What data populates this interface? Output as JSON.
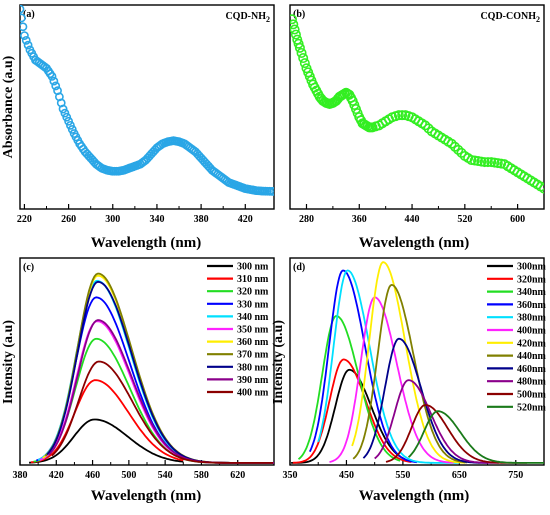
{
  "chart_data": [
    {
      "type": "scatter",
      "panel_label": "(a)",
      "tag": "CQD-NH",
      "tag_sub": "2",
      "xlabel": "Wavelength (nm)",
      "ylabel": "Absorbance (a.u)",
      "xlim": [
        216,
        446
      ],
      "ylim": [
        0,
        1
      ],
      "xticks": [
        220,
        260,
        300,
        340,
        380,
        420
      ],
      "color": "#2aa6e6",
      "x": [
        216,
        220,
        225,
        230,
        235,
        240,
        245,
        250,
        255,
        260,
        265,
        270,
        275,
        280,
        285,
        290,
        295,
        300,
        305,
        310,
        315,
        320,
        325,
        330,
        335,
        340,
        345,
        350,
        355,
        360,
        365,
        370,
        375,
        380,
        385,
        390,
        395,
        400,
        405,
        410,
        415,
        420,
        425,
        430,
        435,
        440,
        446
      ],
      "y": [
        0.98,
        0.85,
        0.78,
        0.73,
        0.71,
        0.69,
        0.65,
        0.58,
        0.49,
        0.43,
        0.37,
        0.32,
        0.28,
        0.25,
        0.22,
        0.2,
        0.19,
        0.185,
        0.185,
        0.19,
        0.2,
        0.21,
        0.22,
        0.24,
        0.27,
        0.3,
        0.32,
        0.33,
        0.335,
        0.33,
        0.32,
        0.3,
        0.28,
        0.25,
        0.22,
        0.19,
        0.17,
        0.15,
        0.13,
        0.12,
        0.11,
        0.1,
        0.095,
        0.09,
        0.088,
        0.087,
        0.086
      ]
    },
    {
      "type": "scatter",
      "panel_label": "(b)",
      "tag": "CQD-CONH",
      "tag_sub": "2",
      "xlabel": "Wavelength (nm)",
      "ylabel": "",
      "xlim": [
        255,
        640
      ],
      "ylim": [
        0,
        1
      ],
      "xticks": [
        280,
        360,
        440,
        520,
        600
      ],
      "color": "#33ee22",
      "x": [
        258,
        262,
        266,
        270,
        275,
        280,
        285,
        290,
        295,
        300,
        305,
        310,
        315,
        320,
        325,
        330,
        335,
        340,
        345,
        350,
        355,
        360,
        365,
        370,
        375,
        380,
        390,
        400,
        410,
        420,
        430,
        440,
        450,
        460,
        470,
        480,
        490,
        500,
        510,
        520,
        530,
        540,
        550,
        560,
        570,
        580,
        590,
        600,
        610,
        620,
        630,
        640
      ],
      "y": [
        0.93,
        0.88,
        0.83,
        0.79,
        0.74,
        0.69,
        0.65,
        0.61,
        0.58,
        0.55,
        0.53,
        0.52,
        0.515,
        0.52,
        0.53,
        0.55,
        0.56,
        0.57,
        0.56,
        0.53,
        0.49,
        0.45,
        0.42,
        0.41,
        0.4,
        0.4,
        0.41,
        0.43,
        0.45,
        0.46,
        0.46,
        0.45,
        0.43,
        0.41,
        0.38,
        0.36,
        0.34,
        0.32,
        0.29,
        0.26,
        0.24,
        0.235,
        0.23,
        0.23,
        0.225,
        0.22,
        0.2,
        0.18,
        0.16,
        0.14,
        0.12,
        0.1
      ]
    },
    {
      "type": "line",
      "panel_label": "(c)",
      "xlabel": "Wavelength (nm)",
      "ylabel": "Intensity (a.u)",
      "xlim": [
        380,
        660
      ],
      "ylim": [
        0,
        1
      ],
      "xticks": [
        380,
        420,
        460,
        500,
        540,
        580,
        620
      ],
      "series": [
        {
          "name": "300 nm",
          "color": "#000000",
          "peak_x": 462,
          "peak_y": 0.21,
          "start_x": 390,
          "end_x": 560
        },
        {
          "name": "310 nm",
          "color": "#ff0000",
          "peak_x": 463,
          "peak_y": 0.4,
          "start_x": 392,
          "end_x": 560
        },
        {
          "name": "320 nm",
          "color": "#22dd22",
          "peak_x": 464,
          "peak_y": 0.6,
          "start_x": 395,
          "end_x": 660
        },
        {
          "name": "330 nm",
          "color": "#0000ff",
          "peak_x": 464,
          "peak_y": 0.8,
          "start_x": 398,
          "end_x": 660
        },
        {
          "name": "340 nm",
          "color": "#00e0ff",
          "peak_x": 465,
          "peak_y": 0.88,
          "start_x": 400,
          "end_x": 660
        },
        {
          "name": "350 nm",
          "color": "#ff22ff",
          "peak_x": 465,
          "peak_y": 0.685,
          "start_x": 402,
          "end_x": 660
        },
        {
          "name": "360 nm",
          "color": "#ffee00",
          "peak_x": 466,
          "peak_y": 0.905,
          "start_x": 405,
          "end_x": 660
        },
        {
          "name": "370 nm",
          "color": "#808000",
          "peak_x": 466,
          "peak_y": 0.915,
          "start_x": 408,
          "end_x": 660
        },
        {
          "name": "380 nm",
          "color": "#00008b",
          "peak_x": 466,
          "peak_y": 0.875,
          "start_x": 410,
          "end_x": 660
        },
        {
          "name": "390 nm",
          "color": "#8b008b",
          "peak_x": 466,
          "peak_y": 0.69,
          "start_x": 412,
          "end_x": 660
        },
        {
          "name": "400 nm",
          "color": "#8b0000",
          "peak_x": 467,
          "peak_y": 0.49,
          "start_x": 415,
          "end_x": 660
        }
      ]
    },
    {
      "type": "line",
      "panel_label": "(d)",
      "xlabel": "Wavelength (nm)",
      "ylabel": "Intensity (a.u)",
      "xlim": [
        350,
        800
      ],
      "ylim": [
        0,
        1
      ],
      "xticks": [
        350,
        450,
        550,
        650,
        750
      ],
      "series": [
        {
          "name": "300nm",
          "color": "#000000",
          "peak_x": 455,
          "peak_y": 0.45,
          "start_x": 352,
          "end_x": 555
        },
        {
          "name": "320nm",
          "color": "#ff0000",
          "peak_x": 445,
          "peak_y": 0.5,
          "start_x": 355,
          "end_x": 565
        },
        {
          "name": "340nm",
          "color": "#22dd22",
          "peak_x": 432,
          "peak_y": 0.71,
          "start_x": 365,
          "end_x": 545
        },
        {
          "name": "360nm",
          "color": "#0000ff",
          "peak_x": 444,
          "peak_y": 0.93,
          "start_x": 385,
          "end_x": 575
        },
        {
          "name": "380nm",
          "color": "#00e0ff",
          "peak_x": 452,
          "peak_y": 0.93,
          "start_x": 400,
          "end_x": 650
        },
        {
          "name": "400nm",
          "color": "#ff22ff",
          "peak_x": 500,
          "peak_y": 0.8,
          "start_x": 420,
          "end_x": 640
        },
        {
          "name": "420nm",
          "color": "#ffee00",
          "peak_x": 515,
          "peak_y": 0.97,
          "start_x": 460,
          "end_x": 660
        },
        {
          "name": "440nm",
          "color": "#808000",
          "peak_x": 530,
          "peak_y": 0.86,
          "start_x": 462,
          "end_x": 665
        },
        {
          "name": "460nm",
          "color": "#00008b",
          "peak_x": 543,
          "peak_y": 0.6,
          "start_x": 480,
          "end_x": 700
        },
        {
          "name": "480nm",
          "color": "#8b008b",
          "peak_x": 560,
          "peak_y": 0.4,
          "start_x": 500,
          "end_x": 720
        },
        {
          "name": "500nm",
          "color": "#8b0000",
          "peak_x": 590,
          "peak_y": 0.28,
          "start_x": 520,
          "end_x": 770
        },
        {
          "name": "520nm",
          "color": "#1a7a1a",
          "peak_x": 612,
          "peak_y": 0.25,
          "start_x": 560,
          "end_x": 800
        }
      ]
    }
  ]
}
